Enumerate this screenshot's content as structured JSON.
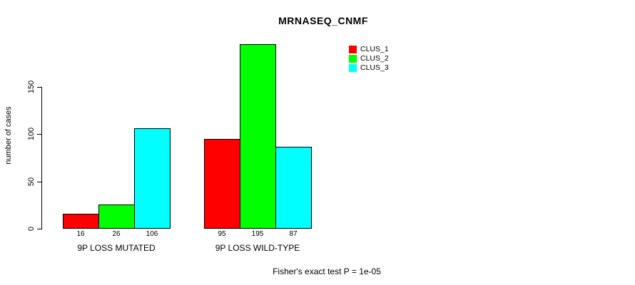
{
  "chart_data": {
    "type": "bar",
    "title": "MRNASEQ_CNMF",
    "ylabel": "number of cases",
    "xlabel": "",
    "categories": [
      "9P LOSS MUTATED",
      "9P LOSS WILD-TYPE"
    ],
    "series": [
      {
        "name": "CLUS_1",
        "color": "#ff0000",
        "values": [
          16,
          95
        ]
      },
      {
        "name": "CLUS_2",
        "color": "#00ff00",
        "values": [
          26,
          195
        ]
      },
      {
        "name": "CLUS_3",
        "color": "#00ffff",
        "values": [
          106,
          87
        ]
      }
    ],
    "bar_value_labels_shown": true,
    "yticks": [
      0,
      50,
      100,
      150
    ],
    "ylim": [
      0,
      150
    ],
    "grid": false,
    "legend_position": "top-right",
    "annotation": "Fisher's exact test P = 1e-05"
  }
}
